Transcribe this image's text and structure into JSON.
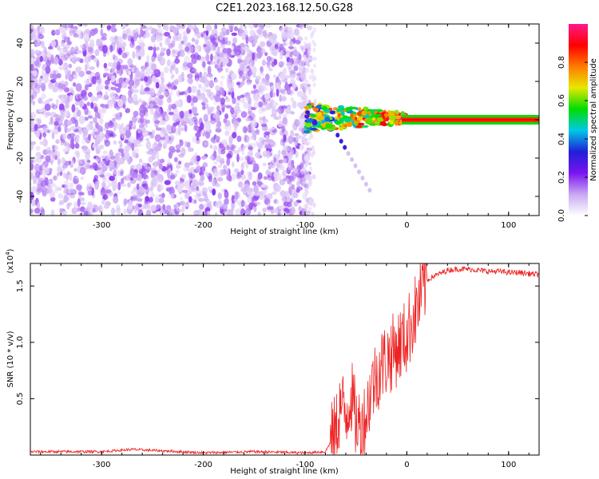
{
  "title": "C2E1.2023.168.12.50.G28",
  "chart_data": [
    {
      "type": "heatmap",
      "xlabel": "Height of straight line (km)",
      "ylabel": "Frequency (Hz)",
      "xlim": [
        -370,
        130
      ],
      "ylim": [
        -50,
        50
      ],
      "xticks": [
        -300,
        -200,
        -100,
        0,
        100
      ],
      "xtick_labels": [
        "-300",
        "-200",
        "-100",
        "0",
        "100"
      ],
      "yticks": [
        40,
        20,
        0,
        -20,
        -40
      ],
      "ytick_labels": [
        "40",
        "20",
        "0",
        "-20",
        "-40"
      ],
      "colorbar": {
        "label": "Normalized spectral amplitude",
        "range": [
          0,
          1
        ],
        "ticks": [
          0.0,
          0.2,
          0.4,
          0.6,
          0.8
        ],
        "tick_labels": [
          "0.0",
          "0.2",
          "0.4",
          "0.6",
          "0.8"
        ],
        "colormap": [
          "#ffffff",
          "#c9a7f2",
          "#7a14f0",
          "#1f1fd8",
          "#00c8e6",
          "#00dd00",
          "#e8e800",
          "#ff7a00",
          "#ff0000",
          "#ff1a8c"
        ]
      },
      "regions": [
        {
          "name": "noise",
          "x_range": [
            -370,
            -95
          ],
          "freq_range": [
            -50,
            50
          ],
          "amplitude": 0.1
        },
        {
          "name": "transition",
          "x_range": [
            -100,
            0
          ],
          "freq_center": 0,
          "amplitude": 0.6
        },
        {
          "name": "signal-line",
          "x_range": [
            0,
            130
          ],
          "freq": 0,
          "amplitude": 1.0
        }
      ]
    },
    {
      "type": "line",
      "xlabel": "Height of straight line (km)",
      "ylabel": "SNR (10 * v/v)",
      "y_multiplier": "(x10",
      "y_multiplier_exp": "4",
      "y_multiplier_close": ")",
      "xlim": [
        -370,
        130
      ],
      "ylim": [
        0,
        1.7
      ],
      "xticks": [
        -300,
        -200,
        -100,
        0,
        100
      ],
      "xtick_labels": [
        "-300",
        "-200",
        "-100",
        "0",
        "100"
      ],
      "yticks": [
        0.5,
        1.0,
        1.5
      ],
      "ytick_labels": [
        "0.5",
        "1.0",
        "1.5"
      ],
      "series": [
        {
          "color": "#ee2222",
          "x": [
            -370,
            -300,
            -270,
            -200,
            -150,
            -100,
            -80,
            -70,
            -65,
            -60,
            -55,
            -50,
            -45,
            -40,
            -35,
            -30,
            -25,
            -20,
            -15,
            -10,
            -5,
            0,
            5,
            10,
            15,
            20,
            25,
            30,
            35,
            40,
            50,
            60,
            70,
            80,
            90,
            100,
            110,
            120,
            130
          ],
          "values": [
            0.03,
            0.03,
            0.05,
            0.02,
            0.03,
            0.02,
            0.03,
            0.2,
            0.45,
            0.35,
            0.55,
            0.3,
            0.25,
            0.35,
            0.6,
            0.7,
            0.8,
            0.85,
            0.9,
            0.95,
            1.0,
            1.05,
            1.2,
            1.3,
            1.45,
            1.55,
            1.58,
            1.6,
            1.62,
            1.64,
            1.65,
            1.65,
            1.64,
            1.63,
            1.63,
            1.62,
            1.62,
            1.61,
            1.6
          ]
        }
      ]
    }
  ]
}
